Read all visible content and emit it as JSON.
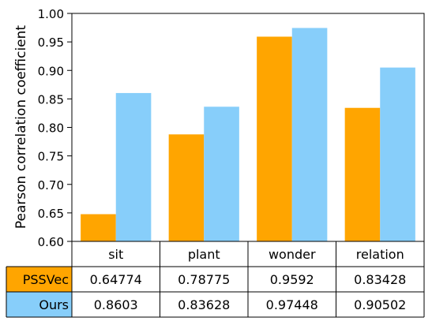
{
  "chart_data": {
    "type": "bar",
    "categories": [
      "sit",
      "plant",
      "wonder",
      "relation"
    ],
    "series": [
      {
        "name": "PSSVec",
        "color": "#FFA500",
        "values": [
          0.64774,
          0.78775,
          0.9592,
          0.83428
        ],
        "labels": [
          "0.64774",
          "0.78775",
          "0.9592",
          "0.83428"
        ]
      },
      {
        "name": "Ours",
        "color": "#87CEFA",
        "values": [
          0.8603,
          0.83628,
          0.97448,
          0.90502
        ],
        "labels": [
          "0.8603",
          "0.83628",
          "0.97448",
          "0.90502"
        ]
      }
    ],
    "ylabel": "Pearson correlation coefficient",
    "ylim": [
      0.6,
      1.0
    ],
    "yticks": [
      "0.60",
      "0.65",
      "0.70",
      "0.75",
      "0.80",
      "0.85",
      "0.90",
      "0.95",
      "1.00"
    ],
    "grid": false,
    "legend": "table"
  }
}
